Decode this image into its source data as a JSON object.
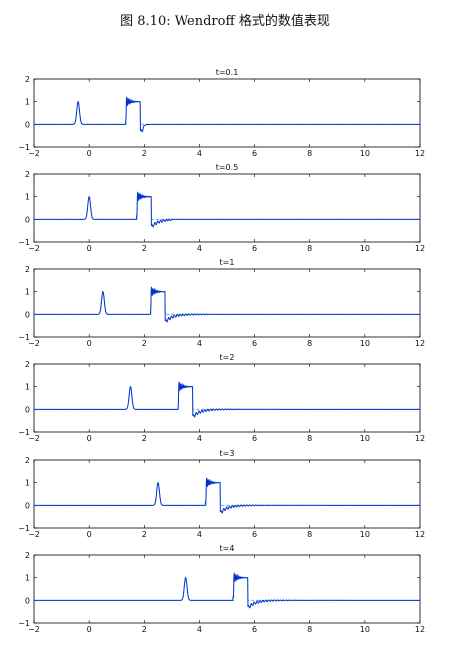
{
  "caption": "图 8.10: Wendroff 格式的数值表现",
  "colors": {
    "solution": "#0033cc",
    "exact": "#4aa3df",
    "axes": "#000000"
  },
  "chart_data": [
    {
      "type": "line",
      "title": "t=0.1",
      "xlim": [
        -2,
        12
      ],
      "ylim": [
        -1,
        2
      ],
      "xticks": [
        "-2",
        "0",
        "2",
        "4",
        "6",
        "8",
        "10",
        "12"
      ],
      "yticks": [
        "-1",
        "0",
        "1",
        "2"
      ],
      "pulse_center": -0.4,
      "pulse_height": 1,
      "square_start": 1.35,
      "square_end": 1.85,
      "square_height": 1,
      "oscillation_end": 1.95,
      "series": [
        {
          "values": []
        }
      ]
    },
    {
      "type": "line",
      "title": "t=0.5",
      "xlim": [
        -2,
        12
      ],
      "ylim": [
        -1,
        2
      ],
      "xticks": [
        "-2",
        "0",
        "2",
        "4",
        "6",
        "8",
        "10",
        "12"
      ],
      "yticks": [
        "-1",
        "0",
        "1",
        "2"
      ],
      "pulse_center": 0,
      "pulse_height": 1,
      "square_start": 1.75,
      "square_end": 2.25,
      "square_height": 1,
      "oscillation_end": 3.0,
      "series": [
        {
          "values": []
        }
      ]
    },
    {
      "type": "line",
      "title": "t=1",
      "xlim": [
        -2,
        12
      ],
      "ylim": [
        -1,
        2
      ],
      "xticks": [
        "-2",
        "0",
        "2",
        "4",
        "6",
        "8",
        "10",
        "12"
      ],
      "yticks": [
        "-1",
        "0",
        "1",
        "2"
      ],
      "pulse_center": 0.5,
      "pulse_height": 1,
      "square_start": 2.25,
      "square_end": 2.75,
      "square_height": 1,
      "oscillation_end": 4.3,
      "series": [
        {
          "values": []
        }
      ]
    },
    {
      "type": "line",
      "title": "t=2",
      "xlim": [
        -2,
        12
      ],
      "ylim": [
        -1,
        2
      ],
      "xticks": [
        "-2",
        "0",
        "2",
        "4",
        "6",
        "8",
        "10",
        "12"
      ],
      "yticks": [
        "-1",
        "0",
        "1",
        "2"
      ],
      "pulse_center": 1.5,
      "pulse_height": 1,
      "square_start": 3.25,
      "square_end": 3.75,
      "square_height": 1,
      "oscillation_end": 6.9,
      "series": [
        {
          "values": []
        }
      ]
    },
    {
      "type": "line",
      "title": "t=3",
      "xlim": [
        -2,
        12
      ],
      "ylim": [
        -1,
        2
      ],
      "xticks": [
        "-2",
        "0",
        "2",
        "4",
        "6",
        "8",
        "10",
        "12"
      ],
      "yticks": [
        "-1",
        "0",
        "1",
        "2"
      ],
      "pulse_center": 2.5,
      "pulse_height": 1,
      "square_start": 4.25,
      "square_end": 4.75,
      "square_height": 1,
      "oscillation_end": 9.5,
      "series": [
        {
          "values": []
        }
      ]
    },
    {
      "type": "line",
      "title": "t=4",
      "xlim": [
        -2,
        12
      ],
      "ylim": [
        -1,
        2
      ],
      "xticks": [
        "-2",
        "0",
        "2",
        "4",
        "6",
        "8",
        "10",
        "12"
      ],
      "yticks": [
        "-1",
        "0",
        "1",
        "2"
      ],
      "pulse_center": 3.5,
      "pulse_height": 1,
      "square_start": 5.25,
      "square_end": 5.75,
      "square_height": 1,
      "oscillation_end": 12.0,
      "series": [
        {
          "values": []
        }
      ]
    }
  ]
}
